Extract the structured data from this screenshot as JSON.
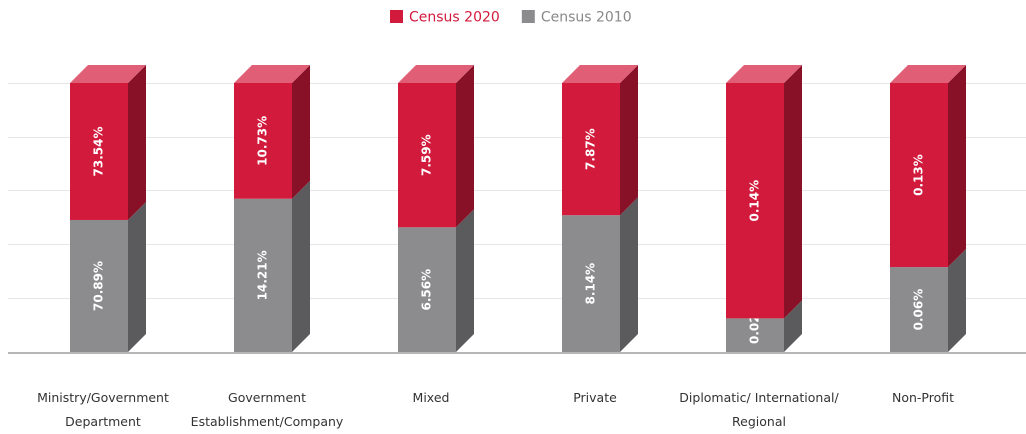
{
  "chart_data": {
    "type": "bar",
    "stacking": "percent",
    "categories": [
      "Ministry/Government Department",
      "Government Establishment/Company",
      "Mixed",
      "Private",
      "Diplomatic/ International/ Regional",
      "Non-Profit"
    ],
    "series": [
      {
        "name": "Census 2020",
        "color": "#d21a3c",
        "values": [
          73.54,
          10.73,
          7.59,
          7.87,
          0.14,
          0.13
        ],
        "value_labels": [
          "73.54%",
          "10.73%",
          "7.59%",
          "7.87%",
          "0.14%",
          "0.13%"
        ]
      },
      {
        "name": "Census 2010",
        "color": "#8c8c8f",
        "values": [
          70.89,
          14.21,
          6.56,
          8.14,
          0.02,
          0.06
        ],
        "value_labels": [
          "70.89%",
          "14.21%",
          "6.56%",
          "8.14%",
          "0.02%",
          "0.06%"
        ]
      }
    ]
  }
}
